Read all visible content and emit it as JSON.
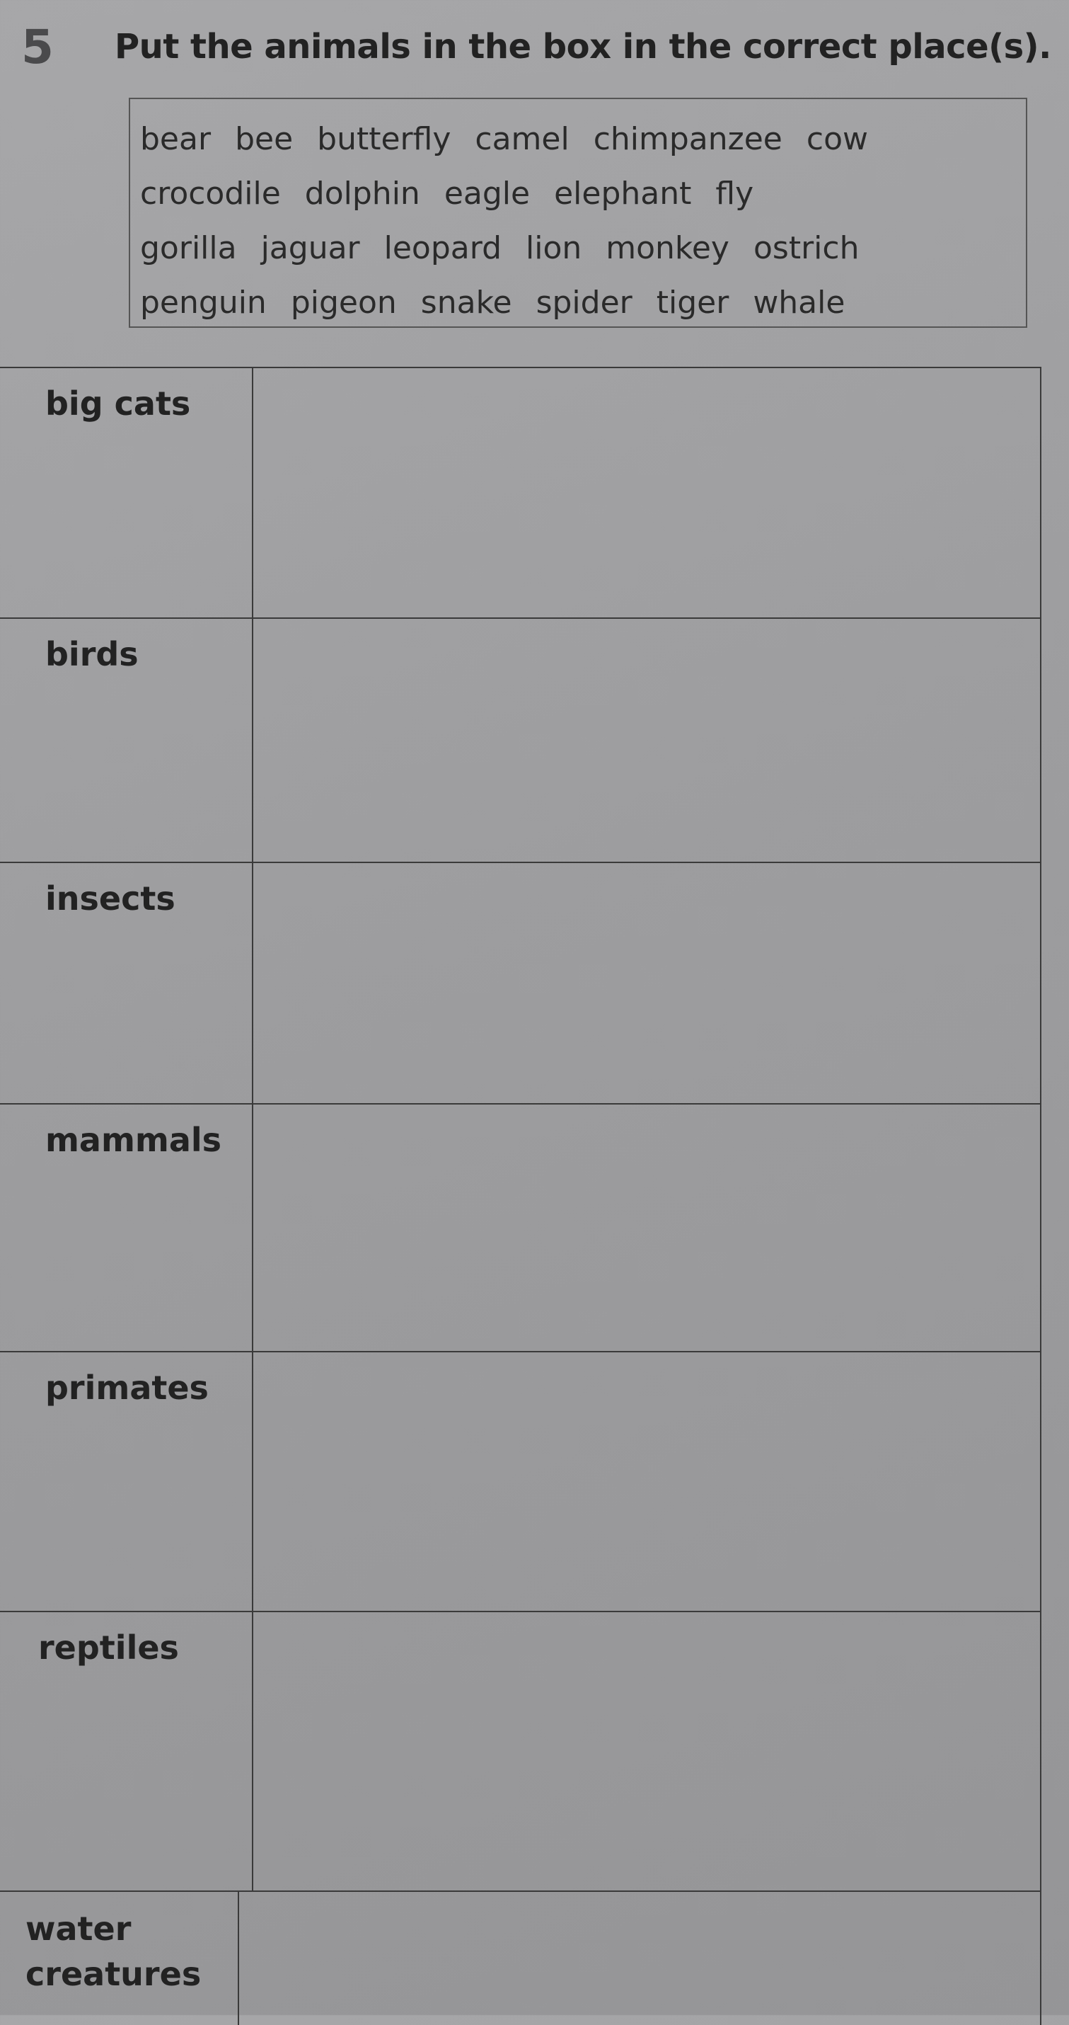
{
  "exercise": {
    "number": "5",
    "instruction": "Put the animals in the box in the correct place(s)."
  },
  "word_box": {
    "lines": [
      [
        "bear",
        "bee",
        "butterfly",
        "camel",
        "chimpanzee",
        "cow"
      ],
      [
        "crocodile",
        "dolphin",
        "eagle",
        "elephant",
        "fly"
      ],
      [
        "gorilla",
        "jaguar",
        "leopard",
        "lion",
        "monkey",
        "ostrich"
      ],
      [
        "penguin",
        "pigeon",
        "snake",
        "spider",
        "tiger",
        "whale"
      ]
    ]
  },
  "table": {
    "rows": [
      {
        "label": "big cats",
        "answer": ""
      },
      {
        "label": "birds",
        "answer": ""
      },
      {
        "label": "insects",
        "answer": ""
      },
      {
        "label": "mammals",
        "answer": ""
      },
      {
        "label": "primates",
        "answer": ""
      },
      {
        "label": "reptiles",
        "answer": ""
      },
      {
        "label": "water creatures",
        "answer": ""
      }
    ]
  }
}
